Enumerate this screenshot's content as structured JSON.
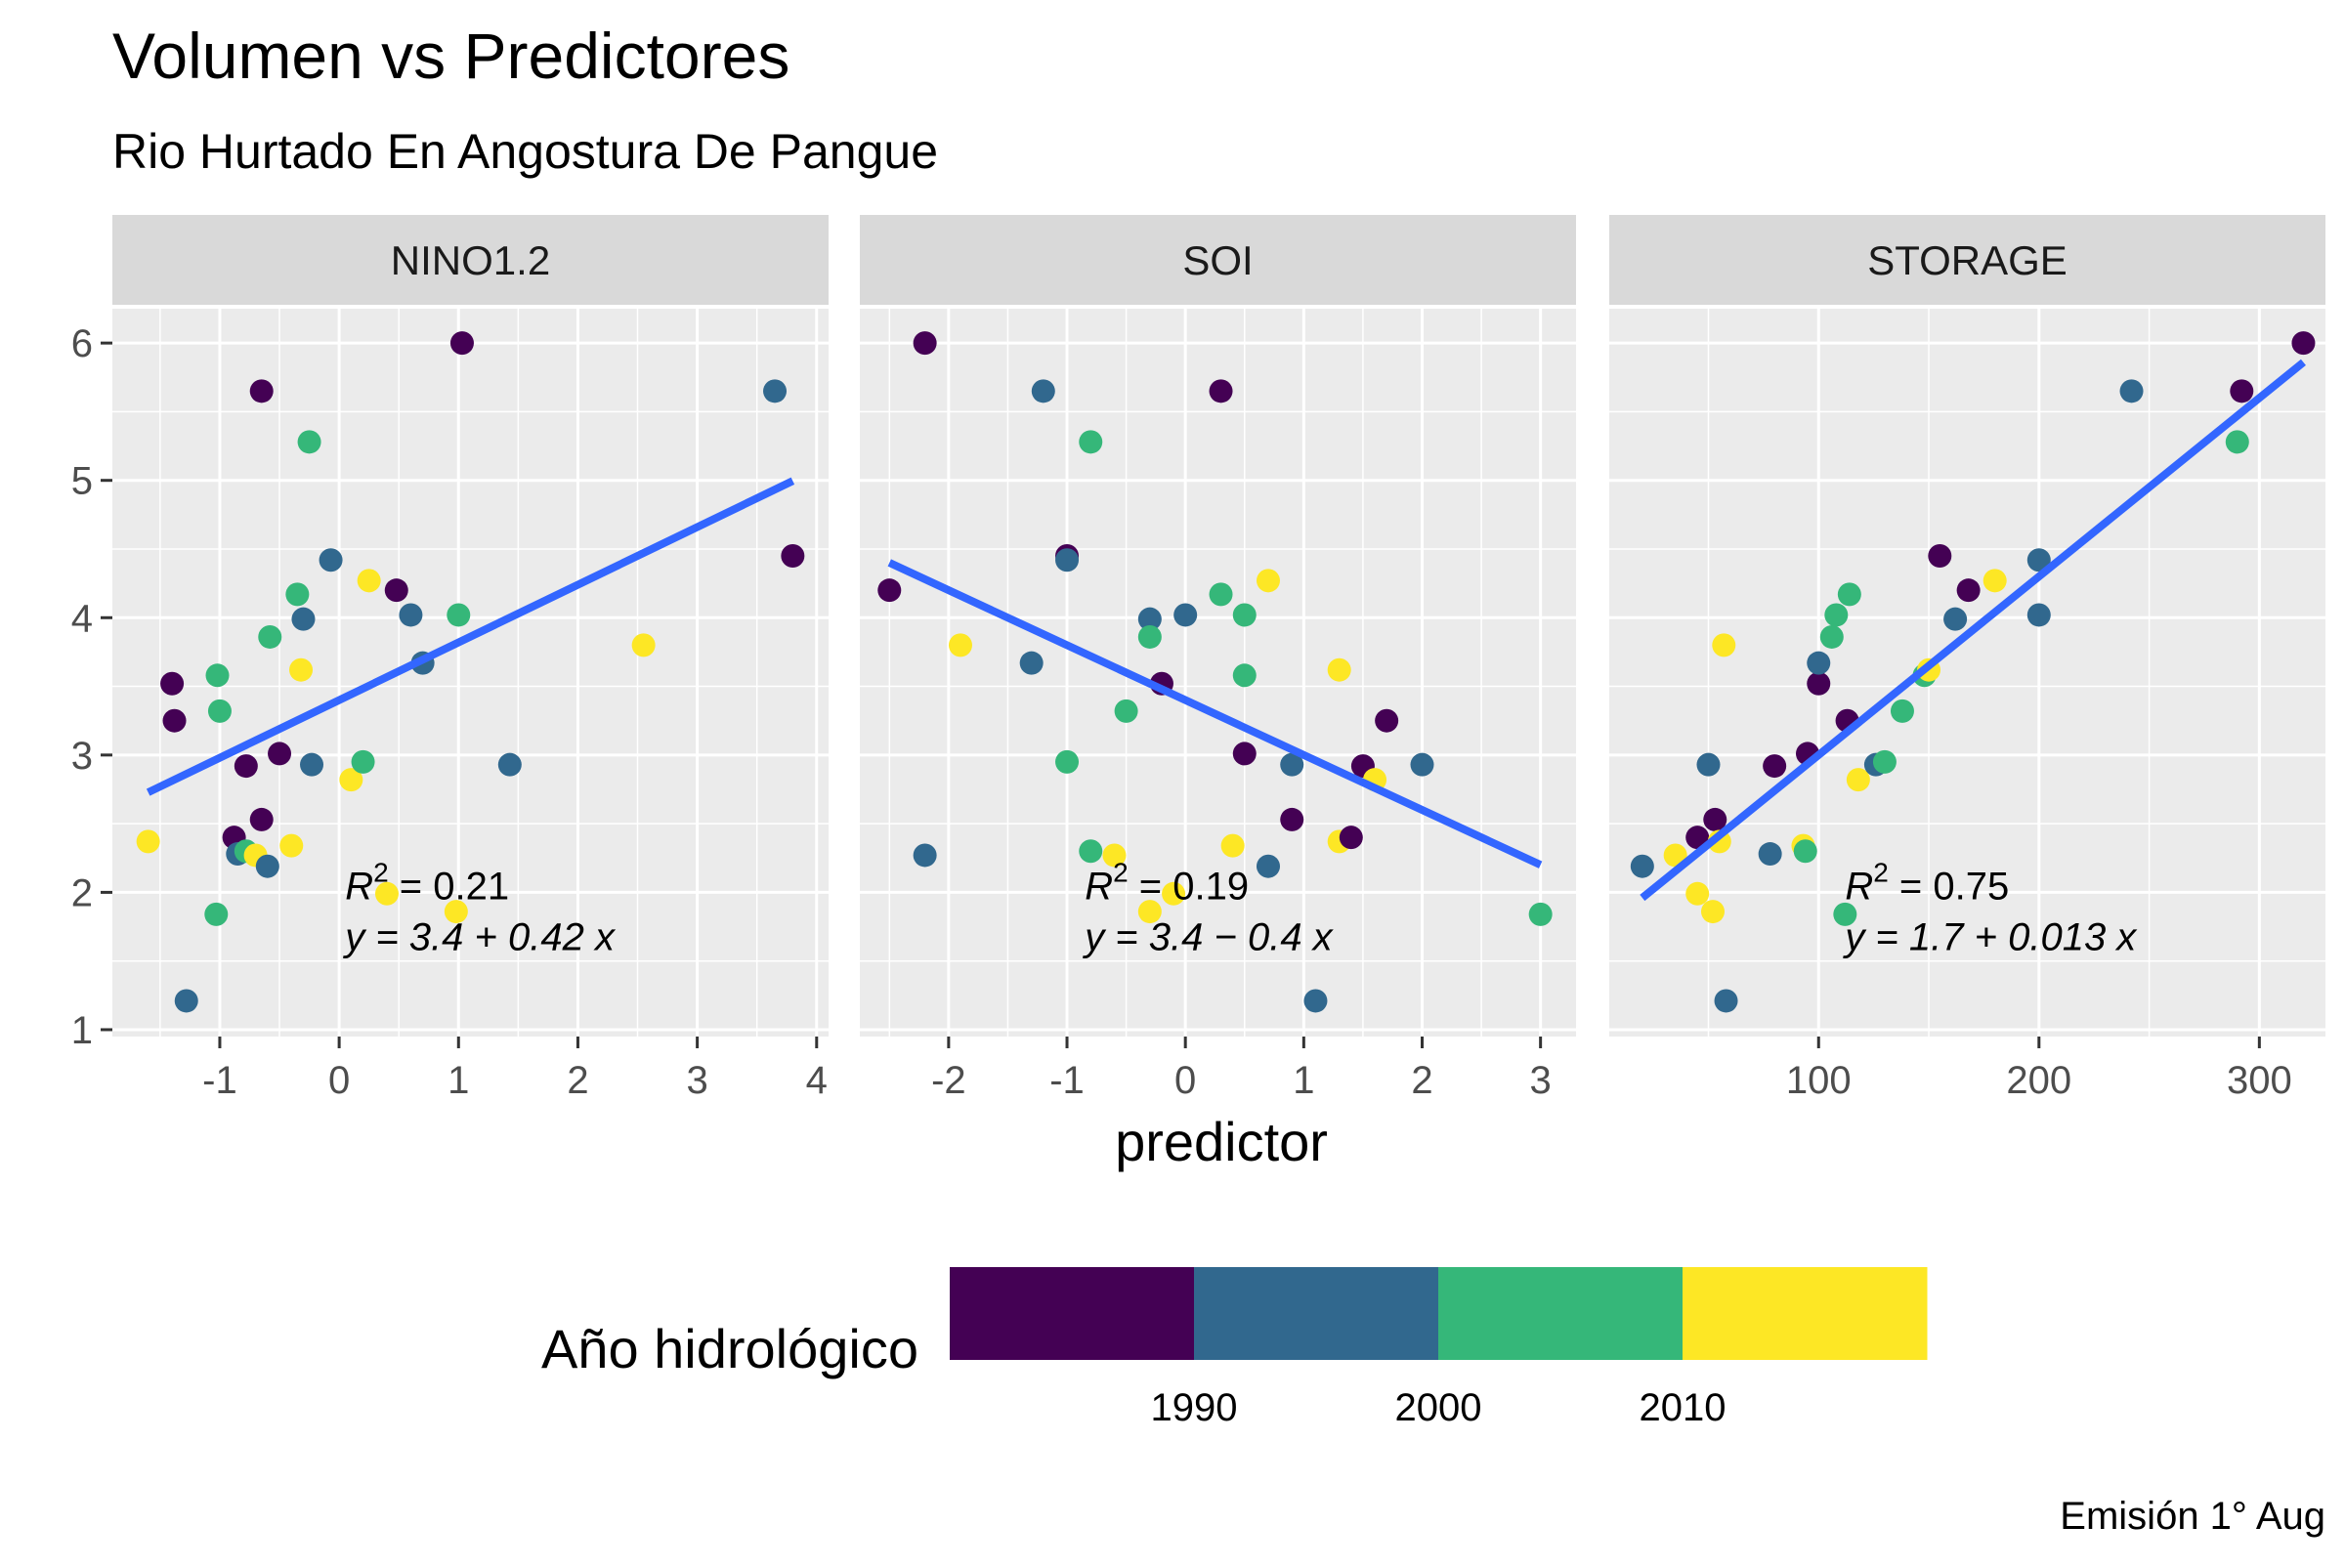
{
  "chart_data": {
    "type": "scatter",
    "title": "Volumen vs Predictores",
    "subtitle": "Rio Hurtado En Angostura De Pangue",
    "xlabel": "predictor",
    "ylabel": "",
    "caption": "Emisión 1° Aug",
    "legend": {
      "title": "Año hidrológico",
      "placement": "bottom",
      "range": [
        1980,
        2020
      ],
      "stops": [
        {
          "from": 1980,
          "to": 1990,
          "color": "#440154"
        },
        {
          "from": 1990,
          "to": 2000,
          "color": "#31688E"
        },
        {
          "from": 2000,
          "to": 2010,
          "color": "#35B779"
        },
        {
          "from": 2010,
          "to": 2020,
          "color": "#FDE725"
        }
      ],
      "breaks": [
        "1990",
        "2000",
        "2010"
      ]
    },
    "y_ticks": [
      "1",
      "2",
      "3",
      "4",
      "5",
      "6"
    ],
    "ylim": [
      0.95,
      6.25
    ],
    "line_color": "#3366FF",
    "facets": [
      {
        "name": "NINO1.2",
        "xlim": [
          -1.9,
          4.1
        ],
        "x_ticks": [
          "-1",
          "0",
          "1",
          "2",
          "3",
          "4"
        ],
        "fit": {
          "intercept": 3.4,
          "slope": 0.42,
          "x_range": [
            -1.6,
            3.8
          ]
        },
        "annotation": {
          "r2": "0.21",
          "r2_line": "R² = 0.21",
          "eq_line": "y = 3.4 + 0.42 x",
          "x": 0.05,
          "y": 1.95
        },
        "points": [
          [
            -1.4,
            3.52,
            1980
          ],
          [
            -1.38,
            3.25,
            1982
          ],
          [
            -1.6,
            2.37,
            2015
          ],
          [
            -1.02,
            3.58,
            2004
          ],
          [
            -1.0,
            3.32,
            2003
          ],
          [
            -1.28,
            1.21,
            1995
          ],
          [
            -1.03,
            1.84,
            2002
          ],
          [
            -0.65,
            5.65,
            1984
          ],
          [
            -0.25,
            5.28,
            2006
          ],
          [
            -0.88,
            2.4,
            1981
          ],
          [
            -0.85,
            2.28,
            1996
          ],
          [
            -0.78,
            2.3,
            2008
          ],
          [
            -0.7,
            2.27,
            2014
          ],
          [
            -0.65,
            2.53,
            1983
          ],
          [
            -0.6,
            2.19,
            1994
          ],
          [
            -0.78,
            2.92,
            1985
          ],
          [
            -0.5,
            3.01,
            1986
          ],
          [
            -0.58,
            3.86,
            2005
          ],
          [
            -0.35,
            4.17,
            2007
          ],
          [
            -0.3,
            3.99,
            1993
          ],
          [
            -0.32,
            3.62,
            2013
          ],
          [
            -0.4,
            2.34,
            2016
          ],
          [
            -0.23,
            2.93,
            1997
          ],
          [
            -0.07,
            4.42,
            1991
          ],
          [
            0.1,
            2.82,
            2011
          ],
          [
            0.2,
            2.95,
            2003
          ],
          [
            0.25,
            4.27,
            2017
          ],
          [
            0.48,
            4.2,
            1987
          ],
          [
            0.4,
            1.99,
            2012
          ],
          [
            0.6,
            4.02,
            1992
          ],
          [
            0.7,
            3.67,
            1998
          ],
          [
            1.0,
            4.02,
            2009
          ],
          [
            0.98,
            1.86,
            2018
          ],
          [
            1.03,
            6.0,
            1988
          ],
          [
            1.43,
            2.93,
            1999
          ],
          [
            2.55,
            3.8,
            2019
          ],
          [
            3.65,
            5.65,
            1990
          ],
          [
            3.8,
            4.45,
            1989
          ]
        ]
      },
      {
        "name": "SOI",
        "xlim": [
          -2.75,
          3.3
        ],
        "x_ticks": [
          "-2",
          "-1",
          "0",
          "1",
          "2",
          "3"
        ],
        "fit": {
          "intercept": 3.4,
          "slope": -0.4,
          "x_range": [
            -2.5,
            3.0
          ]
        },
        "annotation": {
          "r2": "0.19",
          "r2_line": "R² = 0.19",
          "eq_line": "y = 3.4 − 0.4 x",
          "x": -0.85,
          "y": 1.95
        },
        "points": [
          [
            -2.5,
            4.2,
            1981
          ],
          [
            -2.2,
            6.0,
            1988
          ],
          [
            -2.2,
            2.27,
            1995
          ],
          [
            -1.9,
            3.8,
            2015
          ],
          [
            -1.3,
            3.67,
            1998
          ],
          [
            -1.2,
            5.65,
            1990
          ],
          [
            -1.0,
            4.45,
            1989
          ],
          [
            -1.0,
            4.42,
            1991
          ],
          [
            -1.0,
            2.95,
            2003
          ],
          [
            -0.8,
            5.28,
            2006
          ],
          [
            -0.8,
            2.3,
            2008
          ],
          [
            -0.6,
            2.27,
            2014
          ],
          [
            -0.5,
            3.32,
            2004
          ],
          [
            -0.3,
            3.99,
            1993
          ],
          [
            -0.3,
            3.86,
            2005
          ],
          [
            -0.3,
            1.86,
            2018
          ],
          [
            -0.1,
            1.99,
            2012
          ],
          [
            -0.2,
            3.52,
            1980
          ],
          [
            0.0,
            4.02,
            1992
          ],
          [
            0.3,
            4.17,
            2007
          ],
          [
            0.3,
            5.65,
            1984
          ],
          [
            0.4,
            2.34,
            2016
          ],
          [
            0.5,
            4.02,
            2009
          ],
          [
            0.5,
            3.58,
            2002
          ],
          [
            0.5,
            3.01,
            1986
          ],
          [
            0.7,
            4.27,
            2017
          ],
          [
            0.7,
            2.19,
            1994
          ],
          [
            0.9,
            2.93,
            1997
          ],
          [
            0.9,
            2.53,
            1983
          ],
          [
            1.1,
            1.21,
            1996
          ],
          [
            1.3,
            3.62,
            2013
          ],
          [
            1.3,
            2.37,
            2011
          ],
          [
            1.4,
            2.4,
            1982
          ],
          [
            1.5,
            2.92,
            1985
          ],
          [
            1.6,
            2.82,
            2019
          ],
          [
            1.7,
            3.25,
            1987
          ],
          [
            2.0,
            2.93,
            1999
          ],
          [
            3.0,
            1.84,
            2001
          ]
        ]
      },
      {
        "name": "STORAGE",
        "xlim": [
          5,
          330
        ],
        "x_ticks": [
          "100",
          "200",
          "300"
        ],
        "fit": {
          "intercept": 1.7,
          "slope": 0.013,
          "x_range": [
            20,
            320
          ]
        },
        "annotation": {
          "r2": "0.75",
          "r2_line": "R² = 0.75",
          "eq_line": "y = 1.7 + 0.013 x",
          "x": 112,
          "y": 1.95
        },
        "points": [
          [
            20,
            2.19,
            1994
          ],
          [
            35,
            2.27,
            2014
          ],
          [
            45,
            2.4,
            1982
          ],
          [
            45,
            1.99,
            2012
          ],
          [
            50,
            2.93,
            1997
          ],
          [
            52,
            1.86,
            2018
          ],
          [
            53,
            2.53,
            1983
          ],
          [
            55,
            2.37,
            2015
          ],
          [
            57,
            3.8,
            2016
          ],
          [
            58,
            1.21,
            1996
          ],
          [
            78,
            2.28,
            1995
          ],
          [
            80,
            2.92,
            1985
          ],
          [
            93,
            2.34,
            2011
          ],
          [
            94,
            2.3,
            2008
          ],
          [
            95,
            3.01,
            1986
          ],
          [
            100,
            3.52,
            1980
          ],
          [
            100,
            3.67,
            1998
          ],
          [
            106,
            3.86,
            2005
          ],
          [
            108,
            4.02,
            2009
          ],
          [
            112,
            1.84,
            2002
          ],
          [
            113,
            3.25,
            1987
          ],
          [
            114,
            4.17,
            2007
          ],
          [
            118,
            2.82,
            2013
          ],
          [
            126,
            2.93,
            1999
          ],
          [
            130,
            2.95,
            2003
          ],
          [
            138,
            3.32,
            2004
          ],
          [
            148,
            3.58,
            2005
          ],
          [
            150,
            3.62,
            2017
          ],
          [
            155,
            4.45,
            1989
          ],
          [
            162,
            3.99,
            1993
          ],
          [
            168,
            4.2,
            1981
          ],
          [
            180,
            4.27,
            2019
          ],
          [
            200,
            4.42,
            1991
          ],
          [
            200,
            4.02,
            1992
          ],
          [
            242,
            5.65,
            1990
          ],
          [
            290,
            5.28,
            2006
          ],
          [
            292,
            5.65,
            1984
          ],
          [
            320,
            6.0,
            1988
          ]
        ]
      }
    ]
  }
}
